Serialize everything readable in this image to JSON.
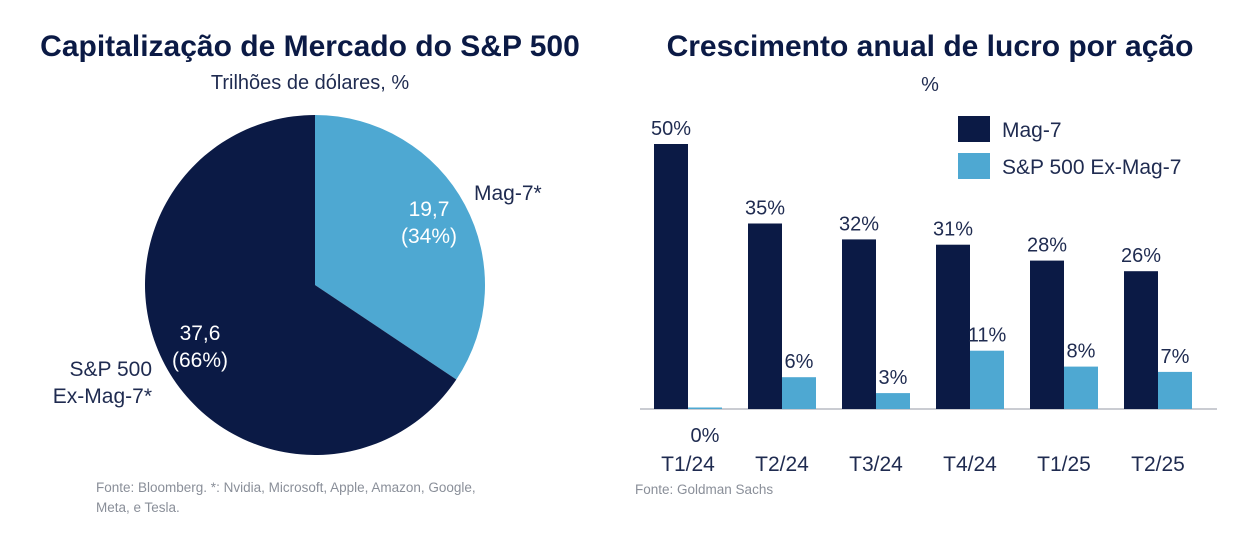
{
  "colors": {
    "dark_navy": "#0b1a45",
    "light_blue": "#4ea8d2",
    "text_gray": "#8a8f99"
  },
  "left": {
    "title": "Capitalização de Mercado do S&P 500",
    "subtitle": "Trilhões de dólares, %",
    "source": "Fonte: Bloomberg. *: Nvidia, Microsoft, Apple, Amazon, Google, Meta, e Tesla.",
    "slice_labels": {
      "mag7_name": "Mag-7*",
      "exmag7_name_line1": "S&P 500",
      "exmag7_name_line2": "Ex-Mag-7*"
    }
  },
  "right": {
    "title": "Crescimento anual de lucro por ação",
    "subtitle": "%",
    "source": "Fonte: Goldman Sachs"
  },
  "chart_data": [
    {
      "type": "pie",
      "title": "Capitalização de Mercado do S&P 500",
      "subtitle": "Trilhões de dólares, %",
      "slices": [
        {
          "name": "Mag-7*",
          "value": 19.7,
          "value_label": "19,7",
          "percent_label": "(34%)",
          "color": "#4ea8d2"
        },
        {
          "name": "S&P 500 Ex-Mag-7*",
          "value": 37.6,
          "value_label": "37,6",
          "percent_label": "(66%)",
          "color": "#0b1a45"
        }
      ]
    },
    {
      "type": "bar",
      "title": "Crescimento anual de lucro por ação",
      "subtitle": "%",
      "categories": [
        "T1/24",
        "T2/24",
        "T3/24",
        "T4/24",
        "T1/25",
        "T2/25"
      ],
      "series": [
        {
          "name": "Mag-7",
          "color": "#0b1a45",
          "values": [
            50,
            35,
            32,
            31,
            28,
            26
          ],
          "labels": [
            "50%",
            "35%",
            "32%",
            "31%",
            "28%",
            "26%"
          ]
        },
        {
          "name": "S&P 500 Ex-Mag-7",
          "color": "#4ea8d2",
          "values": [
            0,
            6,
            3,
            11,
            8,
            7
          ],
          "labels": [
            "0%",
            "6%",
            "3%",
            "11%",
            "8%",
            "7%"
          ]
        }
      ],
      "legend": "top-right",
      "grid": false
    }
  ]
}
